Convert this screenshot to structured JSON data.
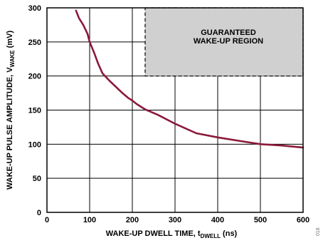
{
  "chart_data": {
    "type": "line",
    "title": "",
    "xlabel": "WAKE-UP DWELL TIME, t",
    "xlabel_sub": "DWELL",
    "xlabel_unit": " (ns)",
    "ylabel": "WAKE-UP PULSE AMPLITUDE, V",
    "ylabel_sub": "WAKE",
    "ylabel_unit": " (mV)",
    "xlim": [
      0,
      600
    ],
    "ylim": [
      0,
      300
    ],
    "xticks": [
      0,
      100,
      200,
      300,
      400,
      500,
      600
    ],
    "yticks": [
      0,
      50,
      100,
      150,
      200,
      250,
      300
    ],
    "grid": true,
    "series": [
      {
        "color": "#8b1a3a",
        "x": [
          68,
          75,
          85,
          95,
          100,
          110,
          120,
          130,
          145,
          160,
          175,
          190,
          200,
          210,
          230,
          260,
          300,
          350,
          400,
          450,
          500,
          550,
          600
        ],
        "y": [
          296,
          285,
          275,
          262,
          250,
          235,
          218,
          204,
          194,
          185,
          176,
          168,
          164,
          159,
          151,
          143,
          130,
          116,
          110,
          105,
          100,
          98,
          95
        ]
      }
    ],
    "region": {
      "label_line1": "GUARANTEED",
      "label_line2": "WAKE-UP REGION",
      "x_range": [
        230,
        600
      ],
      "y_range": [
        200,
        300
      ],
      "fill": "#d0d0d0"
    },
    "code": "018"
  }
}
